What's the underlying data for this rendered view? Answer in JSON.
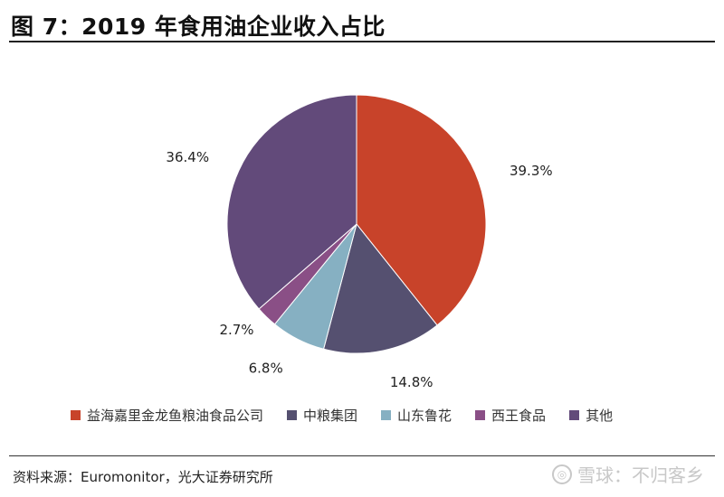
{
  "header": {
    "title": "图 7：2019 年食用油企业收入占比"
  },
  "chart_data": {
    "type": "pie",
    "title": "图 7：2019 年食用油企业收入占比",
    "labels": [
      "益海嘉里金龙鱼粮油食品公司",
      "中粮集团",
      "山东鲁花",
      "西王食品",
      "其他"
    ],
    "values": [
      39.3,
      14.8,
      6.8,
      2.7,
      36.4
    ],
    "value_labels": [
      "39.3%",
      "14.8%",
      "6.8%",
      "2.7%",
      "36.4%"
    ],
    "colors": [
      "#c8432a",
      "#555070",
      "#86b0c2",
      "#8a4f86",
      "#624a7a"
    ],
    "legend_position": "bottom"
  },
  "footer": {
    "source": "资料来源：Euromonitor，光大证券研究所"
  },
  "watermark": {
    "text": "雪球：不归客乡"
  }
}
